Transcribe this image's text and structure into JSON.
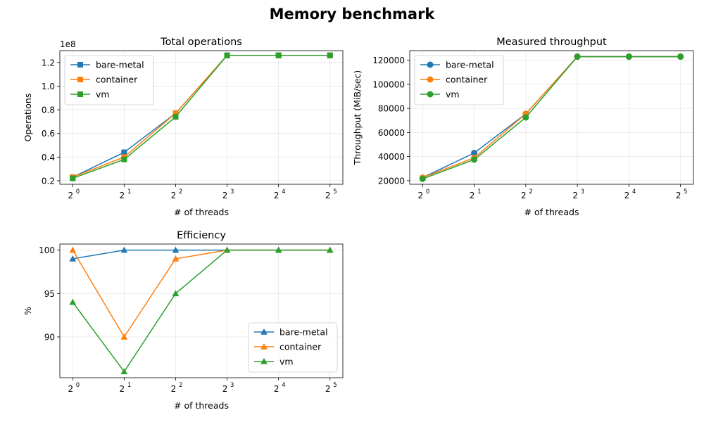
{
  "figure_title": "Memory benchmark",
  "chart_data": [
    {
      "type": "line",
      "title": "Total operations",
      "xlabel": "# of threads",
      "ylabel": "Operations",
      "scale_note": "1e8",
      "x_base": "2",
      "x_exponents": [
        "0",
        "1",
        "2",
        "3",
        "4",
        "5"
      ],
      "x": [
        1,
        2,
        4,
        8,
        16,
        32
      ],
      "xscale": "log2",
      "ylim": [
        17000000,
        130000000
      ],
      "yticks": [
        20000000,
        40000000,
        60000000,
        80000000,
        100000000,
        120000000
      ],
      "ytick_labels": [
        "0.2",
        "0.4",
        "0.6",
        "0.8",
        "1.0",
        "1.2"
      ],
      "grid": true,
      "legend": "upper-left",
      "marker": "square",
      "series": [
        {
          "name": "bare-metal",
          "color": "#1f77b4",
          "values": [
            23000000,
            44000000,
            77000000,
            126000000,
            126000000,
            126000000
          ]
        },
        {
          "name": "container",
          "color": "#ff7f0e",
          "values": [
            23000000,
            40000000,
            77000000,
            126000000,
            126000000,
            126000000
          ]
        },
        {
          "name": "vm",
          "color": "#2ca02c",
          "values": [
            22000000,
            38000000,
            74000000,
            126000000,
            126000000,
            126000000
          ]
        }
      ]
    },
    {
      "type": "line",
      "title": "Measured throughput",
      "xlabel": "# of threads",
      "ylabel": "Throughput (MiB/sec)",
      "x_base": "2",
      "x_exponents": [
        "0",
        "1",
        "2",
        "3",
        "4",
        "5"
      ],
      "x": [
        1,
        2,
        4,
        8,
        16,
        32
      ],
      "xscale": "log2",
      "ylim": [
        17000000,
        128000
      ],
      "yticks": [
        20000,
        40000,
        60000,
        80000,
        100000,
        120000
      ],
      "ytick_labels": [
        "20000",
        "40000",
        "60000",
        "80000",
        "100000",
        "120000"
      ],
      "grid": true,
      "legend": "upper-left",
      "marker": "circle",
      "series": [
        {
          "name": "bare-metal",
          "color": "#1f77b4",
          "values": [
            22500,
            43000,
            75500,
            123000,
            123000,
            123000
          ]
        },
        {
          "name": "container",
          "color": "#ff7f0e",
          "values": [
            22500,
            39000,
            75500,
            123000,
            123000,
            123000
          ]
        },
        {
          "name": "vm",
          "color": "#2ca02c",
          "values": [
            21500,
            37500,
            72500,
            123000,
            123000,
            123000
          ]
        }
      ]
    },
    {
      "type": "line",
      "title": "Efficiency",
      "xlabel": "# of threads",
      "ylabel": "%",
      "x_base": "2",
      "x_exponents": [
        "0",
        "1",
        "2",
        "3",
        "4",
        "5"
      ],
      "x": [
        1,
        2,
        4,
        8,
        16,
        32
      ],
      "xscale": "log2",
      "ylim": [
        85.3,
        100.7
      ],
      "yticks": [
        90,
        95,
        100
      ],
      "ytick_labels": [
        "90",
        "95",
        "100"
      ],
      "grid": true,
      "legend": "lower-right",
      "marker": "triangle",
      "series": [
        {
          "name": "bare-metal",
          "color": "#1f77b4",
          "values": [
            99,
            100,
            100,
            100,
            100,
            100
          ]
        },
        {
          "name": "container",
          "color": "#ff7f0e",
          "values": [
            100,
            90,
            99,
            100,
            100,
            100
          ]
        },
        {
          "name": "vm",
          "color": "#2ca02c",
          "values": [
            94,
            86,
            95,
            100,
            100,
            100
          ]
        }
      ]
    }
  ]
}
